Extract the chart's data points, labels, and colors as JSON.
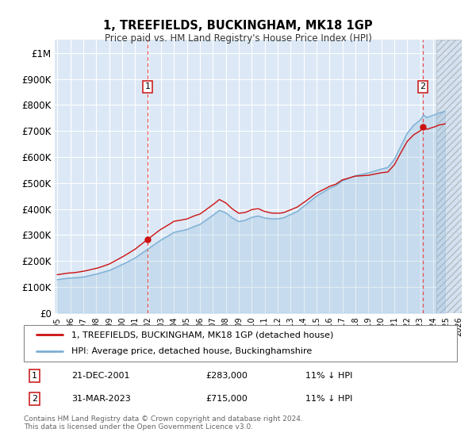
{
  "title": "1, TREEFIELDS, BUCKINGHAM, MK18 1GP",
  "subtitle": "Price paid vs. HM Land Registry's House Price Index (HPI)",
  "ylim": [
    0,
    1050000
  ],
  "yticks": [
    0,
    100000,
    200000,
    300000,
    400000,
    500000,
    600000,
    700000,
    800000,
    900000,
    1000000
  ],
  "ytick_labels": [
    "£0",
    "£100K",
    "£200K",
    "£300K",
    "£400K",
    "£500K",
    "£600K",
    "£700K",
    "£800K",
    "£900K",
    "£1M"
  ],
  "bg_color": "#ffffff",
  "plot_bg": "#dce8f5",
  "hpi_color": "#7bafd4",
  "price_color": "#cc1111",
  "marker1_price": 283000,
  "marker2_price": 715000,
  "sale1_year": 2001.96,
  "sale2_year": 2023.21,
  "legend1": "1, TREEFIELDS, BUCKINGHAM, MK18 1GP (detached house)",
  "legend2": "HPI: Average price, detached house, Buckinghamshire",
  "note1_text": "21-DEC-2001",
  "note1_price": "£283,000",
  "note1_hpi": "11% ↓ HPI",
  "note2_text": "31-MAR-2023",
  "note2_price": "£715,000",
  "note2_hpi": "11% ↓ HPI",
  "copyright": "Contains HM Land Registry data © Crown copyright and database right 2024.\nThis data is licensed under the Open Government Licence v3.0.",
  "hatch_start": 2024.25,
  "xlim_left": 1994.8,
  "xlim_right": 2026.2
}
